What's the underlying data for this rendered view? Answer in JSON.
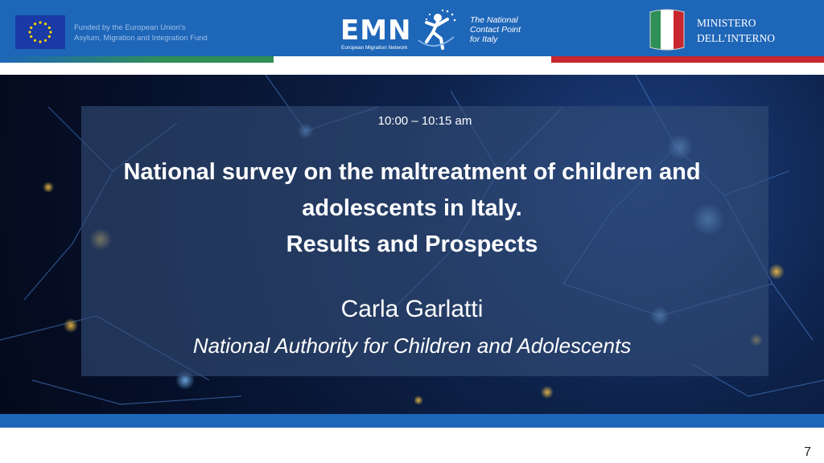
{
  "header": {
    "fund_line1": "Funded by the European Union's",
    "fund_line2": "Asylum, Migration and Integration Fund",
    "emn_logo": "EMN",
    "emn_subtitle": "European Migration Network",
    "ncp_line1": "The National",
    "ncp_line2": "Contact Point",
    "ncp_line3": "for Italy",
    "ministry_line1": "MINISTERO",
    "ministry_line2": "DELL’INTERNO"
  },
  "slide": {
    "time": "10:00 – 10:15 am",
    "title_line1": "National survey on the maltreatment of children and",
    "title_line2": "adolescents in Italy.",
    "title_line3": "Results and Prospects",
    "speaker": "Carla Garlatti",
    "affiliation": "National Authority for Children and Adolescents"
  },
  "page_number": "7",
  "colors": {
    "header_blue": "#1e66b8",
    "italy_green": "#2f8f56",
    "italy_red": "#c9262d",
    "box_fill": "#344e78"
  },
  "icons": [
    "eu-flag-icon",
    "emn-figure-icon",
    "italy-emblem-icon"
  ]
}
